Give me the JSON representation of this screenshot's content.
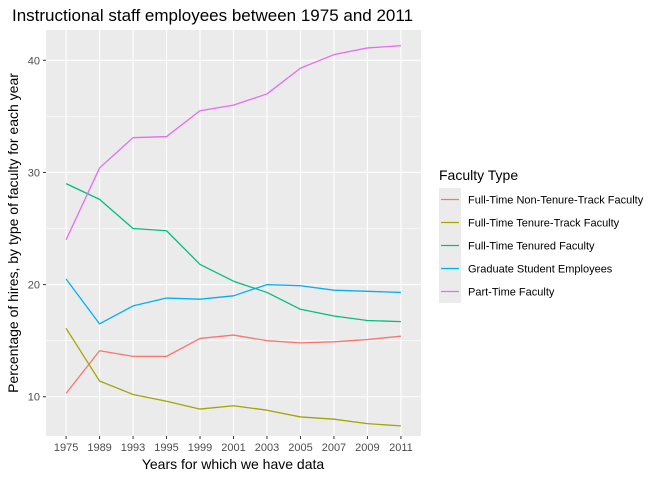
{
  "chart_data": {
    "type": "line",
    "title": "Instructional staff employees between 1975 and 2011",
    "xlabel": "Years for which we have data",
    "ylabel": "Percentage of hires, by type of faculty for each year",
    "categories": [
      "1975",
      "1989",
      "1993",
      "1995",
      "1999",
      "2001",
      "2003",
      "2005",
      "2007",
      "2009",
      "2011"
    ],
    "y_ticks": [
      10,
      20,
      30,
      40
    ],
    "ylim": [
      6.5,
      42.7
    ],
    "grid": true,
    "legend": {
      "title": "Faculty Type",
      "placement": "right"
    },
    "series": [
      {
        "name": "Full-Time Non-Tenure-Track Faculty",
        "color": "#F8766D",
        "values": [
          10.3,
          14.1,
          13.6,
          13.6,
          15.2,
          15.5,
          15.0,
          14.8,
          14.9,
          15.1,
          15.4
        ]
      },
      {
        "name": "Full-Time Tenure-Track Faculty",
        "color": "#A3A500",
        "values": [
          16.1,
          11.4,
          10.2,
          9.6,
          8.9,
          9.2,
          8.8,
          8.2,
          8.0,
          7.6,
          7.4
        ]
      },
      {
        "name": "Full-Time Tenured Faculty",
        "color": "#00BF7D",
        "values": [
          29.0,
          27.6,
          25.0,
          24.8,
          21.8,
          20.3,
          19.3,
          17.8,
          17.2,
          16.8,
          16.7
        ]
      },
      {
        "name": "Graduate Student Employees",
        "color": "#00B0F6",
        "values": [
          20.5,
          16.5,
          18.1,
          18.8,
          18.7,
          19.0,
          20.0,
          19.9,
          19.5,
          19.4,
          19.3
        ]
      },
      {
        "name": "Part-Time Faculty",
        "color": "#E76BF3",
        "values": [
          24.0,
          30.4,
          33.1,
          33.2,
          35.5,
          36.0,
          37.0,
          39.3,
          40.5,
          41.1,
          41.3
        ]
      }
    ]
  }
}
